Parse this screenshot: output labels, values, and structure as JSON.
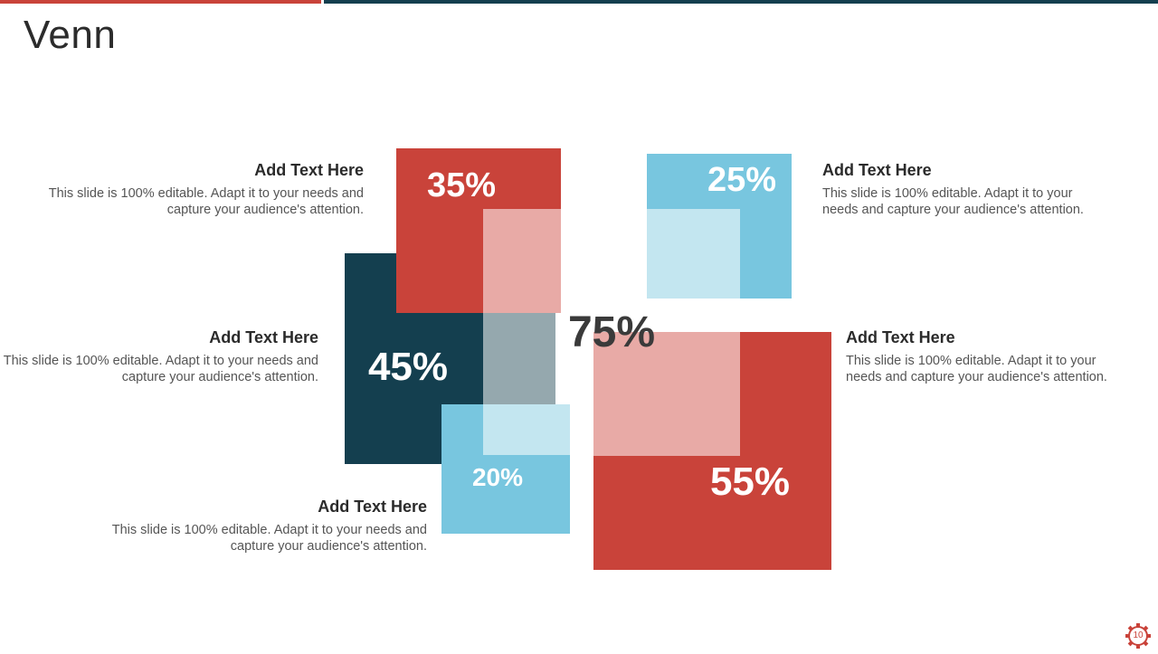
{
  "title": "Venn",
  "colors": {
    "accent_red": "#c9433a",
    "dark_teal": "#143f4f",
    "light_blue": "#78c6df",
    "pale_blue": "#c3e6f0",
    "pale_red": "#e8aaa6",
    "gray_overlap": "#95a8ae"
  },
  "center_value": "75%",
  "values": {
    "top_left": "35%",
    "top_right": "25%",
    "mid_left": "45%",
    "bottom_mid": "20%",
    "bottom_right": "55%"
  },
  "blocks": {
    "top_left": {
      "heading": "Add Text Here",
      "body": "This slide is 100% editable. Adapt it to your needs and capture your audience's attention."
    },
    "top_right": {
      "heading": "Add Text Here",
      "body": "This slide is 100% editable. Adapt it to your needs and capture your audience's attention."
    },
    "mid_left": {
      "heading": "Add Text Here",
      "body": "This slide is 100% editable. Adapt it to your needs and capture your audience's attention."
    },
    "mid_right": {
      "heading": "Add Text Here",
      "body": "This slide is 100% editable. Adapt it to your needs and capture your audience's attention."
    },
    "bottom_left": {
      "heading": "Add Text Here",
      "body": "This slide is 100% editable. Adapt it to your needs and capture your audience's attention."
    }
  },
  "page_number": "10"
}
